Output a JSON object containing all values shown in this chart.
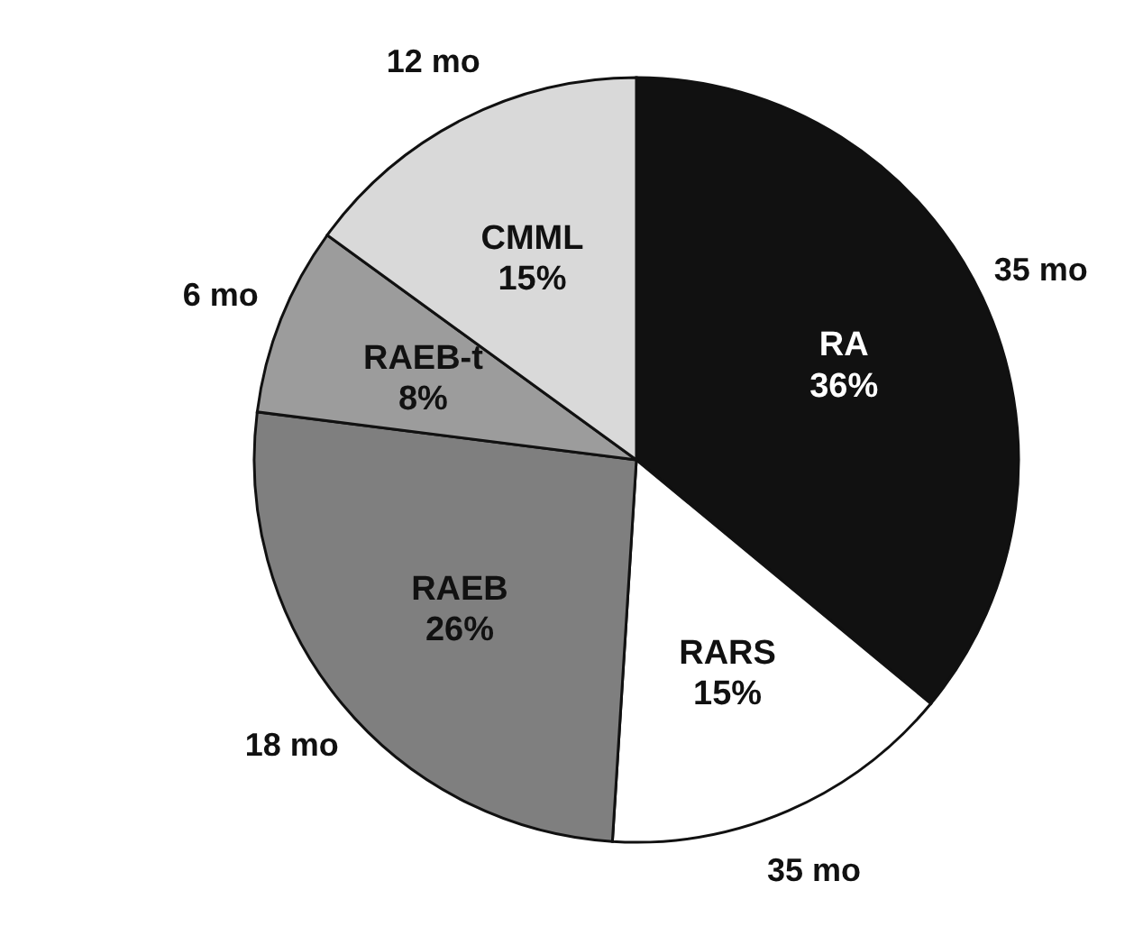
{
  "chart_data": {
    "type": "pie",
    "categories": [
      "RA",
      "RARS",
      "RAEB",
      "RAEB-t",
      "CMML"
    ],
    "values": [
      36,
      15,
      26,
      8,
      15
    ],
    "colors": [
      "#111111",
      "#ffffff",
      "#7f7f7f",
      "#9c9c9c",
      "#d9d9d9"
    ],
    "value_labels": [
      "36%",
      "15%",
      "26%",
      "8%",
      "15%"
    ],
    "legend": false,
    "annotations": [
      {
        "text": "35 mo",
        "x": "RA"
      },
      {
        "text": "35 mo",
        "x": "RARS"
      },
      {
        "text": "18 mo",
        "x": "RAEB"
      },
      {
        "text": "6 mo",
        "x": "RAEB-t"
      },
      {
        "text": "12 mo",
        "x": "CMML"
      }
    ]
  }
}
